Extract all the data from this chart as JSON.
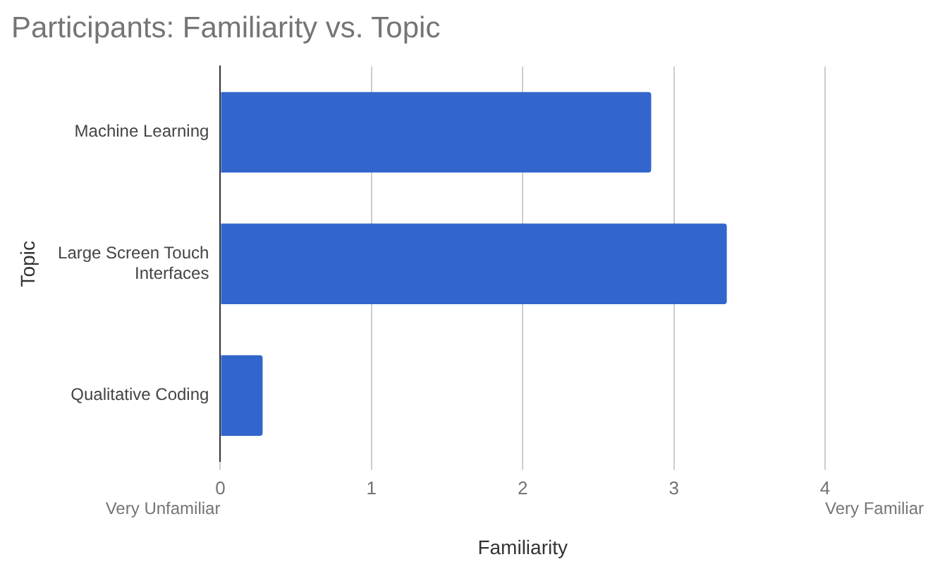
{
  "chart_data": {
    "type": "bar",
    "orientation": "horizontal",
    "title": "Participants: Familiarity vs. Topic",
    "xlabel": "Familiarity",
    "ylabel": "Topic",
    "categories": [
      "Machine Learning",
      "Large Screen Touch Interfaces",
      "Qualitative Coding"
    ],
    "values": [
      2.85,
      3.35,
      0.28
    ],
    "color": "#3366cc",
    "xlim": [
      0,
      4
    ],
    "xticks": [
      0,
      1,
      2,
      3,
      4
    ],
    "grid": "x",
    "legend": false,
    "annotations": [
      "Very Unfamiliar",
      "Very Familiar"
    ]
  }
}
